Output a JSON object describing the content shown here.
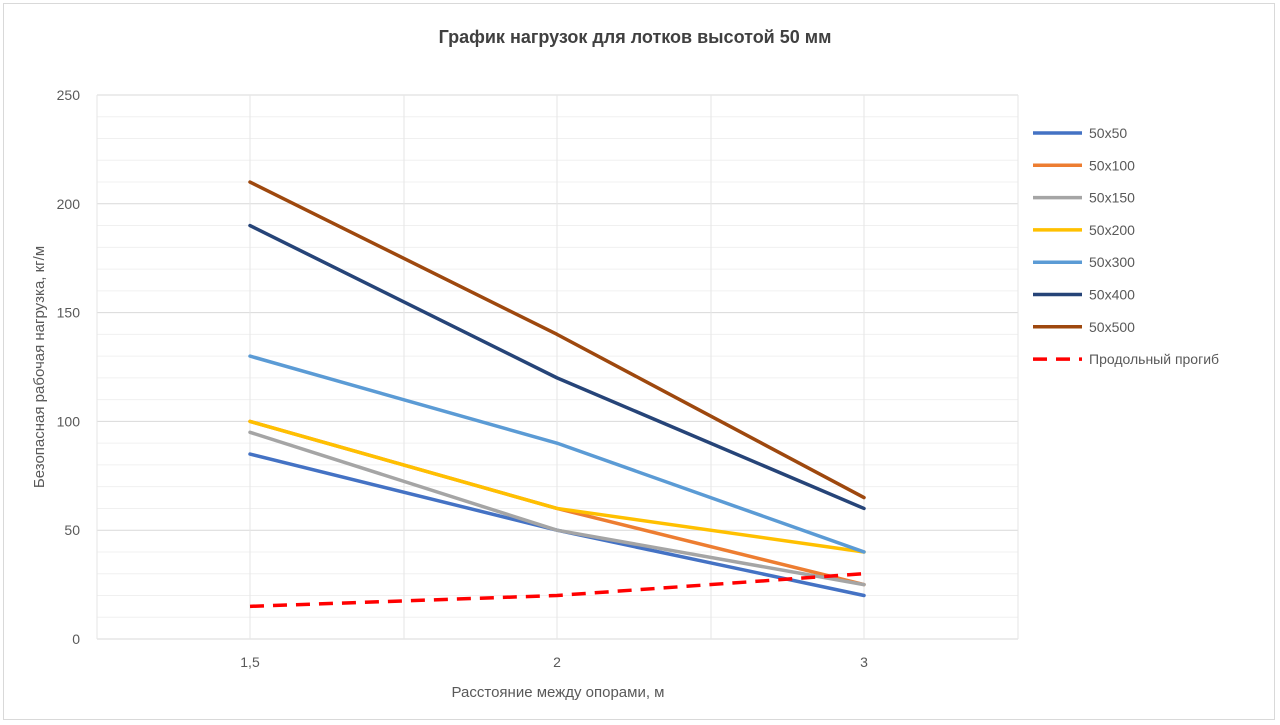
{
  "chart_data": {
    "type": "line",
    "title": "График нагрузок для лотков высотой 50 мм",
    "xlabel": "Расстояние между опорами, м",
    "ylabel": "Безопасная рабочая нагрузка, кг/м",
    "categories": [
      "1,5",
      "2",
      "3"
    ],
    "ylim": [
      0,
      250
    ],
    "yticks": [
      0,
      50,
      100,
      150,
      200,
      250
    ],
    "grid": true,
    "legend_position": "right",
    "series": [
      {
        "name": "50x50",
        "values": [
          85,
          50,
          20
        ],
        "color": "#4472c4",
        "dashed": false
      },
      {
        "name": "50x100",
        "values": [
          100,
          60,
          25
        ],
        "color": "#ed7d31",
        "dashed": false
      },
      {
        "name": "50x150",
        "values": [
          95,
          50,
          25
        ],
        "color": "#a5a5a5",
        "dashed": false
      },
      {
        "name": "50x200",
        "values": [
          100,
          60,
          40
        ],
        "color": "#ffc000",
        "dashed": false
      },
      {
        "name": "50x300",
        "values": [
          130,
          90,
          40
        ],
        "color": "#5b9bd5",
        "dashed": false
      },
      {
        "name": "50x400",
        "values": [
          190,
          120,
          60
        ],
        "color": "#264478",
        "dashed": false
      },
      {
        "name": "50x500",
        "values": [
          210,
          140,
          65
        ],
        "color": "#9e480e",
        "dashed": false
      },
      {
        "name": "Продольный прогиб",
        "values": [
          15,
          20,
          30
        ],
        "color": "#ff0000",
        "dashed": true
      }
    ]
  }
}
